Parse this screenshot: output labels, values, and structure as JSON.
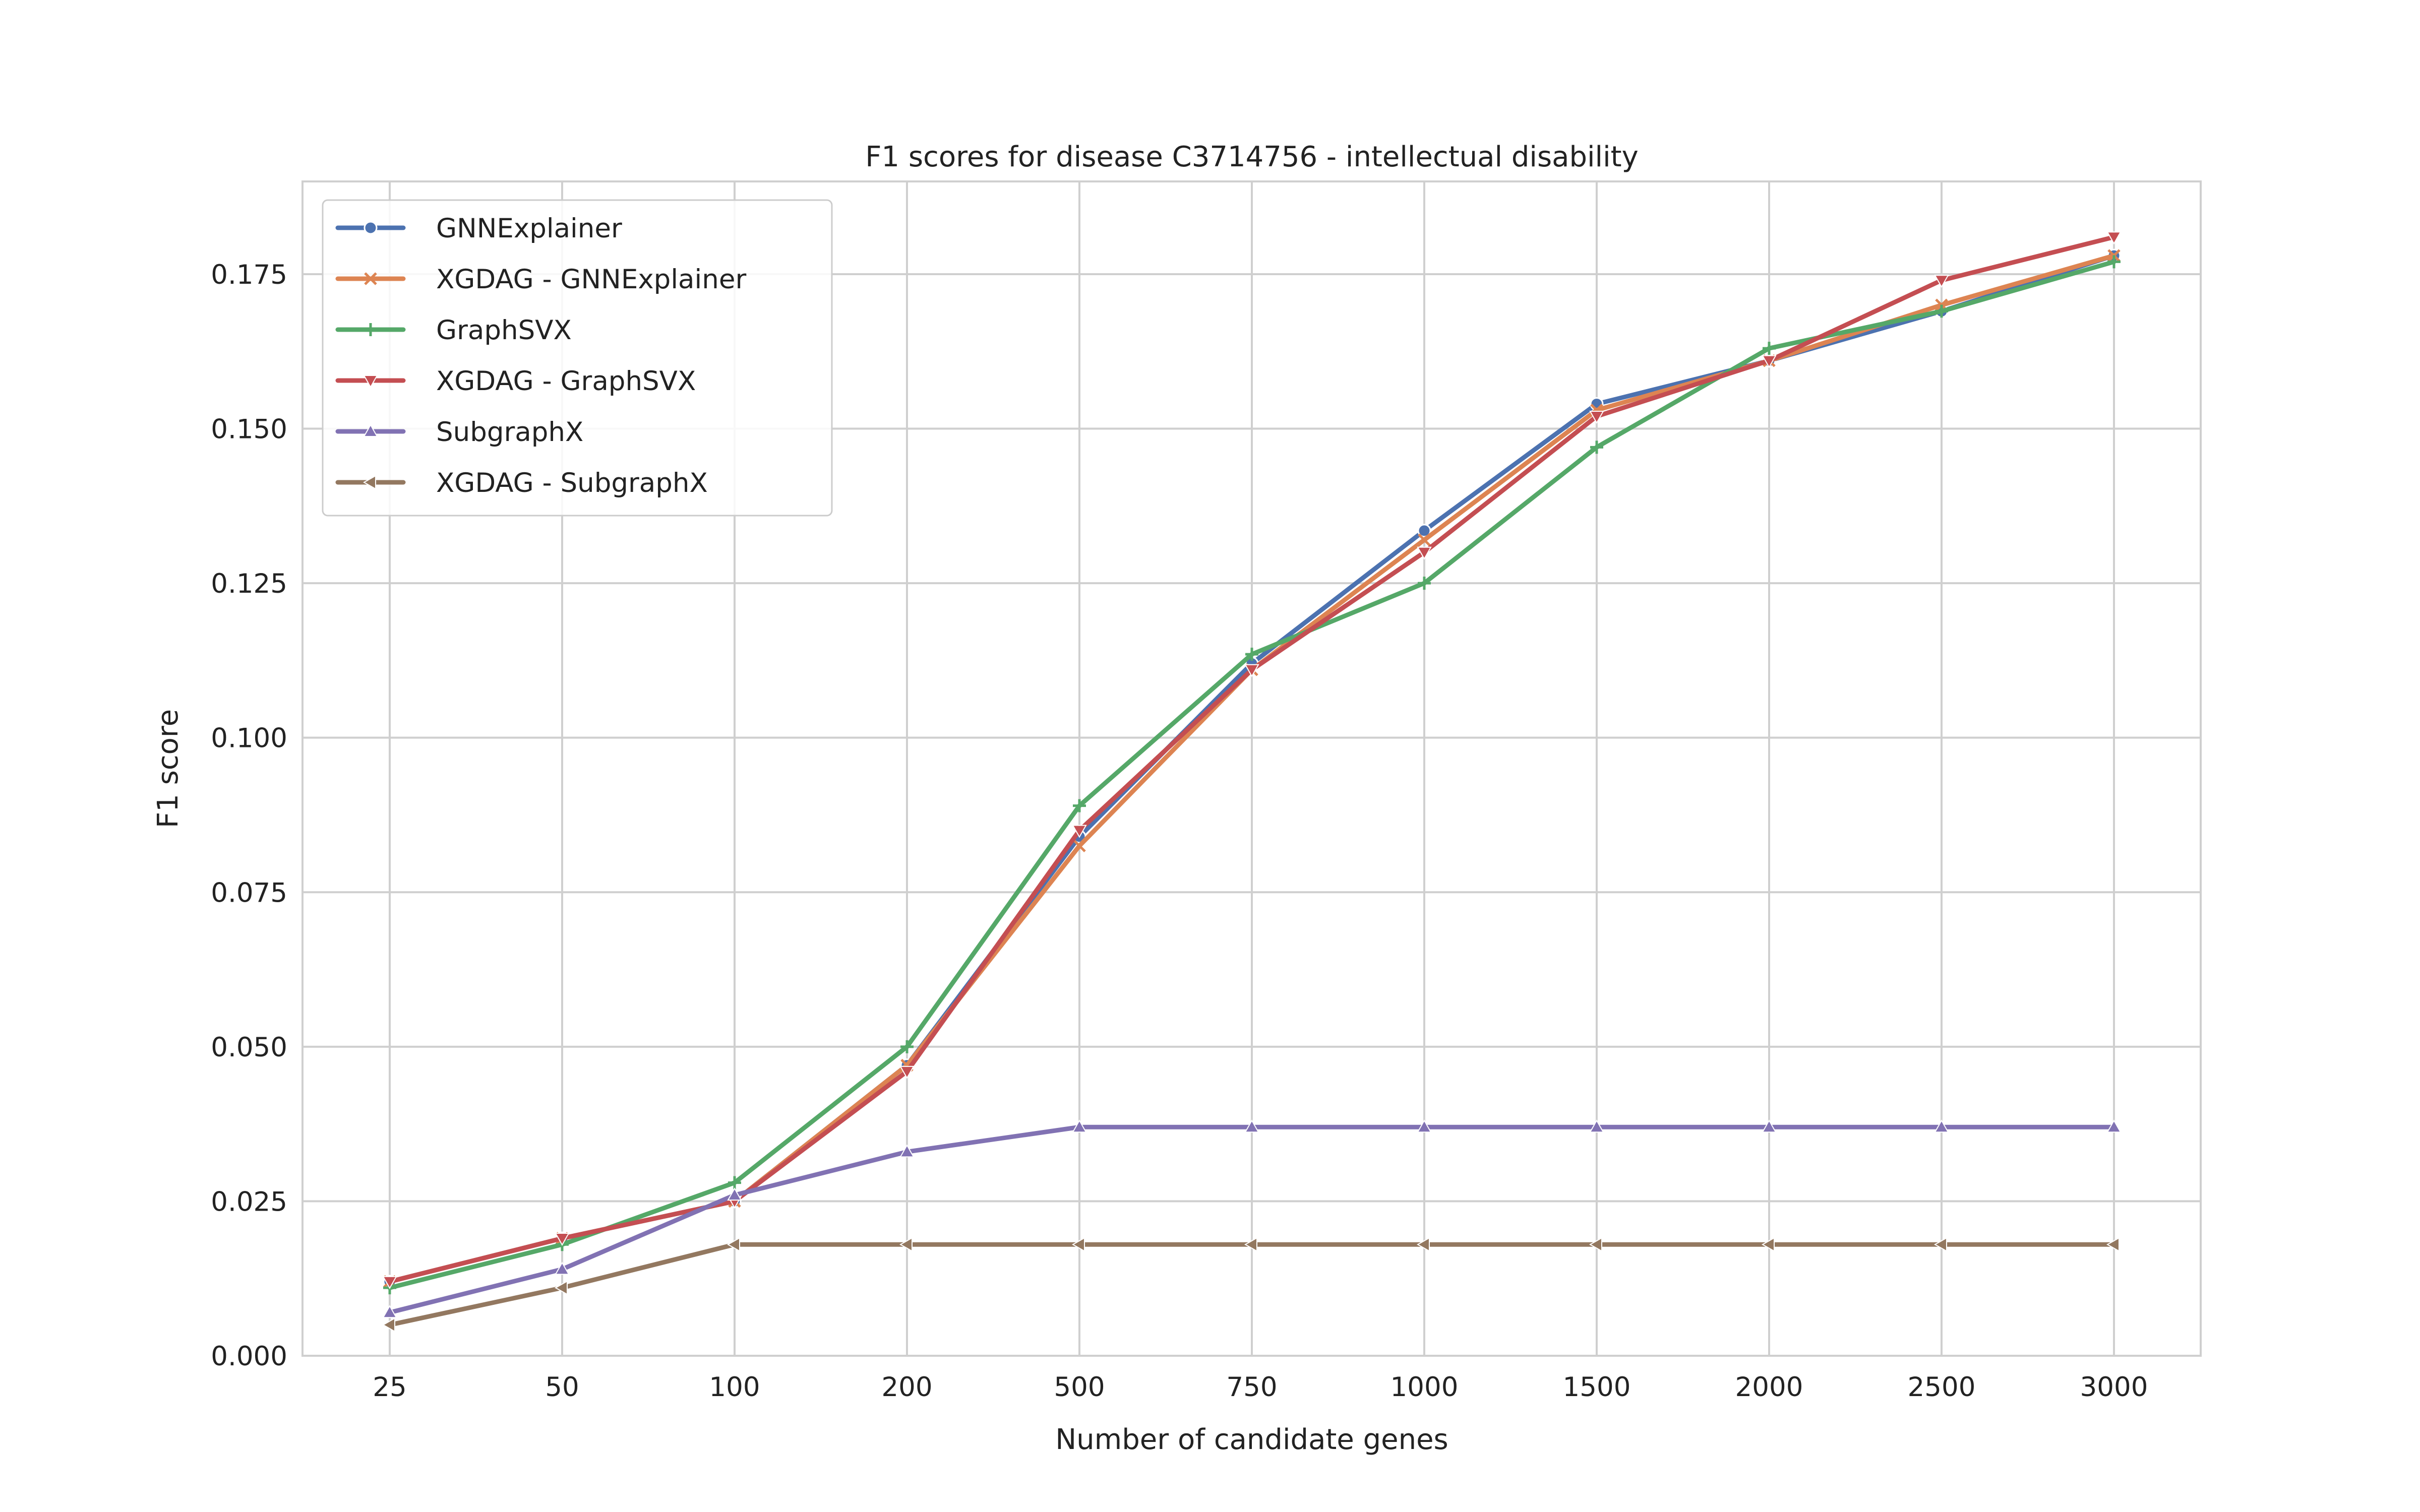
{
  "chart_data": {
    "type": "line",
    "title": "F1 scores for disease C3714756 - intellectual disability",
    "xlabel": "Number of candidate genes",
    "ylabel": "F1 score",
    "categories": [
      "25",
      "50",
      "100",
      "200",
      "500",
      "750",
      "1000",
      "1500",
      "2000",
      "2500",
      "3000"
    ],
    "ylim": [
      0.0,
      0.19
    ],
    "yticks": [
      "0.000",
      "0.025",
      "0.050",
      "0.075",
      "0.100",
      "0.125",
      "0.150",
      "0.175"
    ],
    "grid": true,
    "legend_position": "top-left",
    "series": [
      {
        "name": "GNNExplainer",
        "color": "#4c72b0",
        "marker": "circle",
        "values": [
          0.012,
          0.019,
          0.025,
          0.047,
          0.084,
          0.112,
          0.1335,
          0.154,
          0.161,
          0.169,
          0.178
        ]
      },
      {
        "name": "XGDAG - GNNExplainer",
        "color": "#dd8452",
        "marker": "x",
        "values": [
          0.012,
          0.019,
          0.025,
          0.047,
          0.0825,
          0.111,
          0.132,
          0.153,
          0.161,
          0.17,
          0.178
        ]
      },
      {
        "name": "GraphSVX",
        "color": "#55a868",
        "marker": "plus",
        "values": [
          0.011,
          0.018,
          0.028,
          0.05,
          0.089,
          0.1135,
          0.125,
          0.147,
          0.163,
          0.169,
          0.177
        ]
      },
      {
        "name": "XGDAG - GraphSVX",
        "color": "#c44e52",
        "marker": "tri-down",
        "values": [
          0.012,
          0.019,
          0.025,
          0.046,
          0.085,
          0.111,
          0.13,
          0.152,
          0.161,
          0.174,
          0.181
        ]
      },
      {
        "name": "SubgraphX",
        "color": "#8172b3",
        "marker": "tri-up",
        "values": [
          0.007,
          0.014,
          0.026,
          0.033,
          0.037,
          0.037,
          0.037,
          0.037,
          0.037,
          0.037,
          0.037
        ]
      },
      {
        "name": "XGDAG - SubgraphX",
        "color": "#937860",
        "marker": "tri-left",
        "values": [
          0.005,
          0.011,
          0.018,
          0.018,
          0.018,
          0.018,
          0.018,
          0.018,
          0.018,
          0.018,
          0.018
        ]
      }
    ]
  }
}
